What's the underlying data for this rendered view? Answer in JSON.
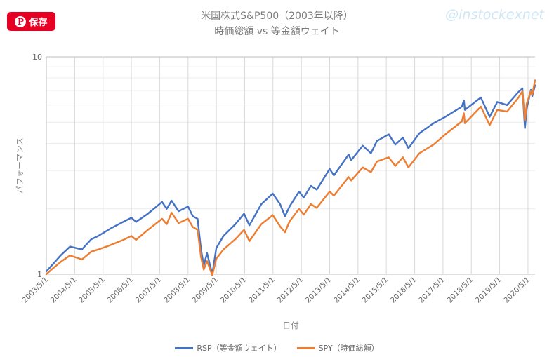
{
  "save_button": {
    "label": "保存",
    "icon": "pinterest-icon"
  },
  "watermark": "@instockexnet",
  "chart_data": {
    "type": "line",
    "title": "米国株式S&P500（2003年以降）",
    "subtitle": "時価総額 vs 等金額ウェイト",
    "xlabel": "日付",
    "ylabel": "パフォーマンス",
    "yscale": "log",
    "ylim": [
      1,
      10
    ],
    "ytick_labels": [
      "1",
      "10"
    ],
    "xlim": [
      "2003-05-01",
      "2020-07-31"
    ],
    "xtick_labels": [
      "2003/5/1",
      "2004/5/1",
      "2005/5/1",
      "2006/5/1",
      "2007/5/1",
      "2008/5/1",
      "2009/5/1",
      "2010/5/1",
      "2011/5/1",
      "2012/5/1",
      "2013/5/1",
      "2014/5/1",
      "2015/5/1",
      "2016/5/1",
      "2017/5/1",
      "2018/5/1",
      "2019/5/1",
      "2020/5/1"
    ],
    "legend_position": "bottom",
    "grid": true,
    "series": [
      {
        "name": "RSP（等金額ウェイト）",
        "color": "#4472c4",
        "x": [
          "2003-05-01",
          "2003-08-01",
          "2003-11-01",
          "2004-03-01",
          "2004-08-01",
          "2004-12-01",
          "2005-03-01",
          "2005-08-01",
          "2006-01-01",
          "2006-05-01",
          "2006-07-01",
          "2006-12-01",
          "2007-06-01",
          "2007-08-01",
          "2007-10-01",
          "2008-01-01",
          "2008-05-01",
          "2008-07-01",
          "2008-09-01",
          "2008-10-15",
          "2008-11-20",
          "2009-01-01",
          "2009-03-09",
          "2009-05-01",
          "2009-08-01",
          "2010-01-01",
          "2010-04-23",
          "2010-07-01",
          "2010-12-01",
          "2011-04-29",
          "2011-08-01",
          "2011-10-03",
          "2011-12-01",
          "2012-04-01",
          "2012-06-01",
          "2012-09-01",
          "2012-11-15",
          "2013-05-01",
          "2013-06-24",
          "2013-12-31",
          "2014-02-03",
          "2014-07-01",
          "2014-10-15",
          "2014-12-31",
          "2015-06-01",
          "2015-08-25",
          "2015-12-01",
          "2016-02-11",
          "2016-07-01",
          "2016-12-31",
          "2017-06-01",
          "2017-12-31",
          "2018-01-26",
          "2018-02-08",
          "2018-09-01",
          "2018-12-24",
          "2019-04-01",
          "2019-08-05",
          "2019-12-31",
          "2020-02-19",
          "2020-03-23",
          "2020-04-15",
          "2020-06-08",
          "2020-06-26",
          "2020-07-31"
        ],
        "values": [
          1.03,
          1.12,
          1.22,
          1.34,
          1.3,
          1.45,
          1.5,
          1.62,
          1.73,
          1.82,
          1.74,
          1.9,
          2.15,
          2.0,
          2.18,
          1.95,
          2.05,
          1.85,
          1.8,
          1.3,
          1.1,
          1.25,
          1.0,
          1.32,
          1.5,
          1.7,
          1.9,
          1.68,
          2.1,
          2.35,
          2.1,
          1.85,
          2.05,
          2.4,
          2.25,
          2.55,
          2.45,
          3.05,
          2.85,
          3.55,
          3.35,
          3.9,
          3.6,
          4.1,
          4.4,
          3.95,
          4.25,
          3.8,
          4.45,
          4.95,
          5.3,
          5.9,
          6.3,
          5.7,
          6.5,
          5.3,
          6.2,
          6.0,
          6.9,
          7.15,
          4.7,
          5.8,
          7.05,
          6.6,
          7.4
        ]
      },
      {
        "name": "SPY（時価総額）",
        "color": "#ed7d31",
        "x": [
          "2003-05-01",
          "2003-08-01",
          "2003-11-01",
          "2004-03-01",
          "2004-08-01",
          "2004-12-01",
          "2005-03-01",
          "2005-08-01",
          "2006-01-01",
          "2006-05-01",
          "2006-07-01",
          "2006-12-01",
          "2007-06-01",
          "2007-08-01",
          "2007-10-01",
          "2008-01-01",
          "2008-05-01",
          "2008-07-01",
          "2008-09-01",
          "2008-10-15",
          "2008-11-20",
          "2009-01-01",
          "2009-03-09",
          "2009-05-01",
          "2009-08-01",
          "2010-01-01",
          "2010-04-23",
          "2010-07-01",
          "2010-12-01",
          "2011-04-29",
          "2011-08-01",
          "2011-10-03",
          "2011-12-01",
          "2012-04-01",
          "2012-06-01",
          "2012-09-01",
          "2012-11-15",
          "2013-05-01",
          "2013-06-24",
          "2013-12-31",
          "2014-02-03",
          "2014-07-01",
          "2014-10-15",
          "2014-12-31",
          "2015-06-01",
          "2015-08-25",
          "2015-12-01",
          "2016-02-11",
          "2016-07-01",
          "2016-12-31",
          "2017-06-01",
          "2017-12-31",
          "2018-01-26",
          "2018-02-08",
          "2018-09-01",
          "2018-12-24",
          "2019-04-01",
          "2019-08-05",
          "2019-12-31",
          "2020-02-19",
          "2020-03-23",
          "2020-04-15",
          "2020-06-08",
          "2020-06-26",
          "2020-07-31"
        ],
        "values": [
          1.0,
          1.07,
          1.14,
          1.22,
          1.17,
          1.27,
          1.3,
          1.36,
          1.43,
          1.5,
          1.44,
          1.6,
          1.8,
          1.7,
          1.92,
          1.72,
          1.8,
          1.65,
          1.6,
          1.2,
          1.05,
          1.15,
          0.99,
          1.18,
          1.3,
          1.45,
          1.6,
          1.42,
          1.7,
          1.87,
          1.66,
          1.56,
          1.75,
          2.0,
          1.88,
          2.1,
          2.02,
          2.4,
          2.3,
          2.8,
          2.7,
          3.1,
          2.95,
          3.3,
          3.45,
          3.15,
          3.45,
          3.1,
          3.6,
          3.95,
          4.4,
          5.05,
          5.5,
          4.95,
          5.9,
          4.85,
          5.7,
          5.6,
          6.5,
          6.95,
          5.1,
          6.1,
          6.95,
          6.7,
          7.8
        ]
      }
    ]
  }
}
